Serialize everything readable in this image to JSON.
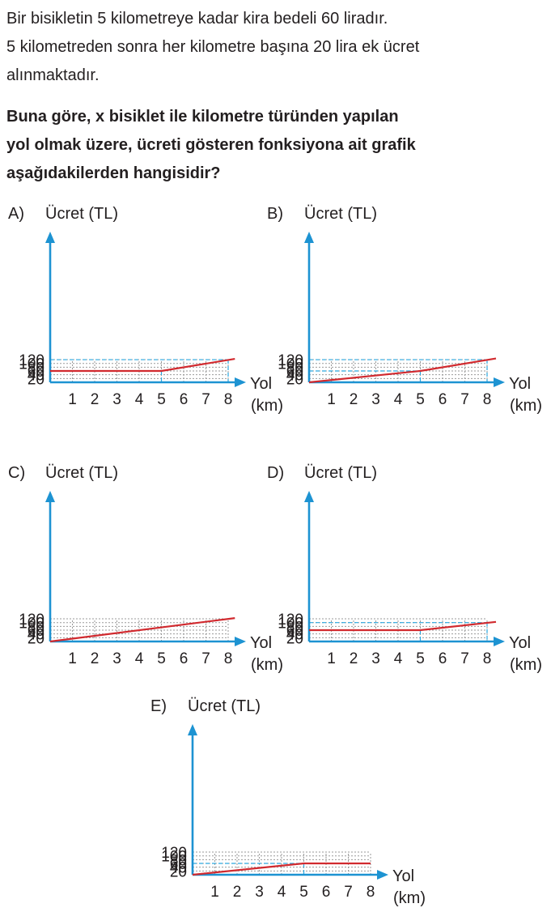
{
  "intro": {
    "line1": "Bir bisikletin 5 kilometreye kadar kira bedeli 60 liradır.",
    "line2": "5 kilometreden sonra her kilometre başına 20 lira ek ücret",
    "line3": "alınmaktadır."
  },
  "question": {
    "line1": "Buna göre, x bisiklet ile kilometre türünden yapılan",
    "line2": "yol olmak üzere, ücreti gösteren fonksiyona ait grafik",
    "line3": "aşağıdakilerden hangisidir?"
  },
  "colors": {
    "axis": "#1d93d2",
    "grid": "#9a9a9a",
    "guide": "#2aa7df",
    "line": "#d12a2f"
  },
  "chart_data": [
    {
      "type": "line",
      "option": "A)",
      "ylabel": "Ücret (TL)",
      "xlabel": [
        "Yol",
        "(km)"
      ],
      "x_ticks": [
        "1",
        "2",
        "3",
        "4",
        "5",
        "6",
        "7",
        "8"
      ],
      "y_ticks": [
        "20",
        "40",
        "60",
        "80",
        "100",
        "120"
      ],
      "xlim": [
        0,
        8
      ],
      "ylim": [
        0,
        120
      ],
      "grid": true,
      "series": [
        {
          "name": "A",
          "x": [
            0,
            5,
            8.3
          ],
          "y": [
            60,
            60,
            124
          ]
        }
      ],
      "guides": [
        {
          "x": 5,
          "y": 60
        },
        {
          "x": 8,
          "y": 120
        }
      ]
    },
    {
      "type": "line",
      "option": "B)",
      "ylabel": "Ücret (TL)",
      "xlabel": [
        "Yol",
        "(km)"
      ],
      "x_ticks": [
        "1",
        "2",
        "3",
        "4",
        "5",
        "6",
        "7",
        "8"
      ],
      "y_ticks": [
        "20",
        "40",
        "60",
        "80",
        "100",
        "120"
      ],
      "xlim": [
        0,
        8
      ],
      "ylim": [
        0,
        120
      ],
      "grid": true,
      "series": [
        {
          "name": "B",
          "x": [
            0,
            5,
            8.4
          ],
          "y": [
            0,
            60,
            126
          ]
        }
      ],
      "guides": [
        {
          "x": 5,
          "y": 60
        },
        {
          "x": 8,
          "y": 120
        }
      ]
    },
    {
      "type": "line",
      "option": "C)",
      "ylabel": "Ücret (TL)",
      "xlabel": [
        "Yol",
        "(km)"
      ],
      "x_ticks": [
        "1",
        "2",
        "3",
        "4",
        "5",
        "6",
        "7",
        "8"
      ],
      "y_ticks": [
        "20",
        "40",
        "60",
        "80",
        "100",
        "120"
      ],
      "xlim": [
        0,
        8
      ],
      "ylim": [
        0,
        120
      ],
      "grid": true,
      "series": [
        {
          "name": "C",
          "x": [
            0,
            8.3
          ],
          "y": [
            0,
            124
          ]
        }
      ],
      "guides": []
    },
    {
      "type": "line",
      "option": "D)",
      "ylabel": "Ücret (TL)",
      "xlabel": [
        "Yol",
        "(km)"
      ],
      "x_ticks": [
        "1",
        "2",
        "3",
        "4",
        "5",
        "6",
        "7",
        "8"
      ],
      "y_ticks": [
        "20",
        "40",
        "60",
        "80",
        "100",
        "120"
      ],
      "xlim": [
        0,
        8
      ],
      "ylim": [
        0,
        120
      ],
      "grid": true,
      "series": [
        {
          "name": "D",
          "x": [
            0,
            5,
            8.4
          ],
          "y": [
            60,
            60,
            104
          ]
        }
      ],
      "guides": [
        {
          "x": 5,
          "y": 60
        },
        {
          "x": 8,
          "y": 100
        }
      ]
    },
    {
      "type": "line",
      "option": "E)",
      "ylabel": "Ücret (TL)",
      "xlabel": [
        "Yol",
        "(km)"
      ],
      "x_ticks": [
        "1",
        "2",
        "3",
        "4",
        "5",
        "6",
        "7",
        "8"
      ],
      "y_ticks": [
        "20",
        "40",
        "60",
        "80",
        "100",
        "120"
      ],
      "xlim": [
        0,
        8
      ],
      "ylim": [
        0,
        120
      ],
      "grid": true,
      "series": [
        {
          "name": "E",
          "x": [
            0,
            5,
            8
          ],
          "y": [
            0,
            60,
            60
          ]
        }
      ],
      "guides": [
        {
          "x": 5,
          "y": 60
        }
      ]
    }
  ]
}
